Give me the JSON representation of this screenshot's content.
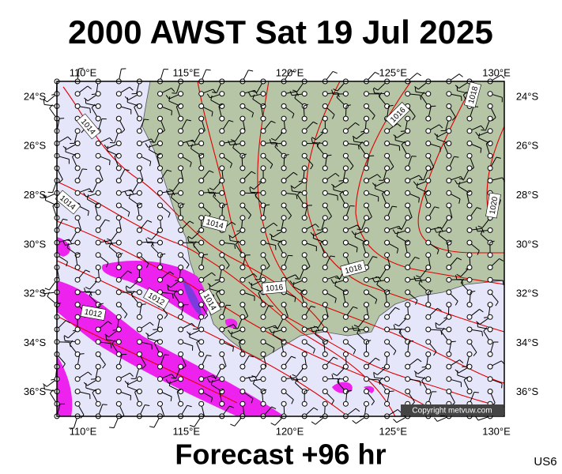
{
  "header": {
    "title": "2000 AWST Sat 19 Jul 2025"
  },
  "map": {
    "lon_labels": [
      "110°E",
      "115°E",
      "120°E",
      "125°E",
      "130°E"
    ],
    "lat_labels": [
      "24°S",
      "26°S",
      "28°S",
      "30°S",
      "32°S",
      "34°S",
      "36°S"
    ],
    "isobar_labels": [
      "1014",
      "1014",
      "1014",
      "1016",
      "1018",
      "1020",
      "1018",
      "1016",
      "1014",
      "1012",
      "1012"
    ],
    "copyright": "Copyright metvuw.com"
  },
  "footer": {
    "forecast": "Forecast +96 hr",
    "code": "US6"
  }
}
